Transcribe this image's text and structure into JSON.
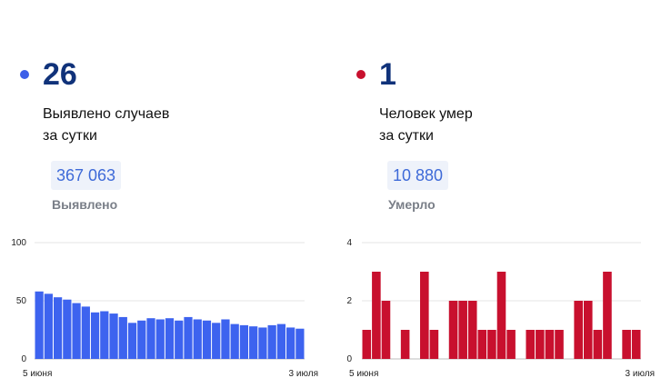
{
  "cases": {
    "value": "26",
    "desc_line1": "Выявлено случаев",
    "desc_line2": "за сутки",
    "total": "367 063",
    "total_label": "Выявлено",
    "dot_color": "#3d5fe8",
    "bar_color": "#3d63ef",
    "badge_text_color": "#3e6ad8"
  },
  "deaths": {
    "value": "1",
    "desc_line1": "Человек умер",
    "desc_line2": "за сутки",
    "total": "10 880",
    "total_label": "Умерло",
    "dot_color": "#c8102e",
    "bar_color": "#c8102e",
    "badge_text_color": "#3e6ad8"
  },
  "chart_data": [
    {
      "type": "bar",
      "title": "",
      "xlabel": "",
      "ylabel": "",
      "x_start_label": "5 июня",
      "x_end_label": "3 июля",
      "ylim": [
        0,
        100
      ],
      "yticks": [
        0,
        50,
        100
      ],
      "grid": true,
      "values": [
        58,
        56,
        53,
        51,
        48,
        45,
        40,
        41,
        39,
        36,
        31,
        33,
        35,
        34,
        35,
        33,
        36,
        34,
        33,
        31,
        34,
        30,
        29,
        28,
        27,
        29,
        30,
        27,
        26
      ]
    },
    {
      "type": "bar",
      "title": "",
      "xlabel": "",
      "ylabel": "",
      "x_start_label": "5 июня",
      "x_end_label": "3 июля",
      "ylim": [
        0,
        4
      ],
      "yticks": [
        0,
        2,
        4
      ],
      "grid": true,
      "values": [
        1,
        3,
        2,
        0,
        1,
        0,
        3,
        1,
        0,
        2,
        2,
        2,
        1,
        1,
        3,
        1,
        0,
        1,
        1,
        1,
        1,
        0,
        2,
        2,
        1,
        3,
        0,
        1,
        1
      ]
    }
  ]
}
